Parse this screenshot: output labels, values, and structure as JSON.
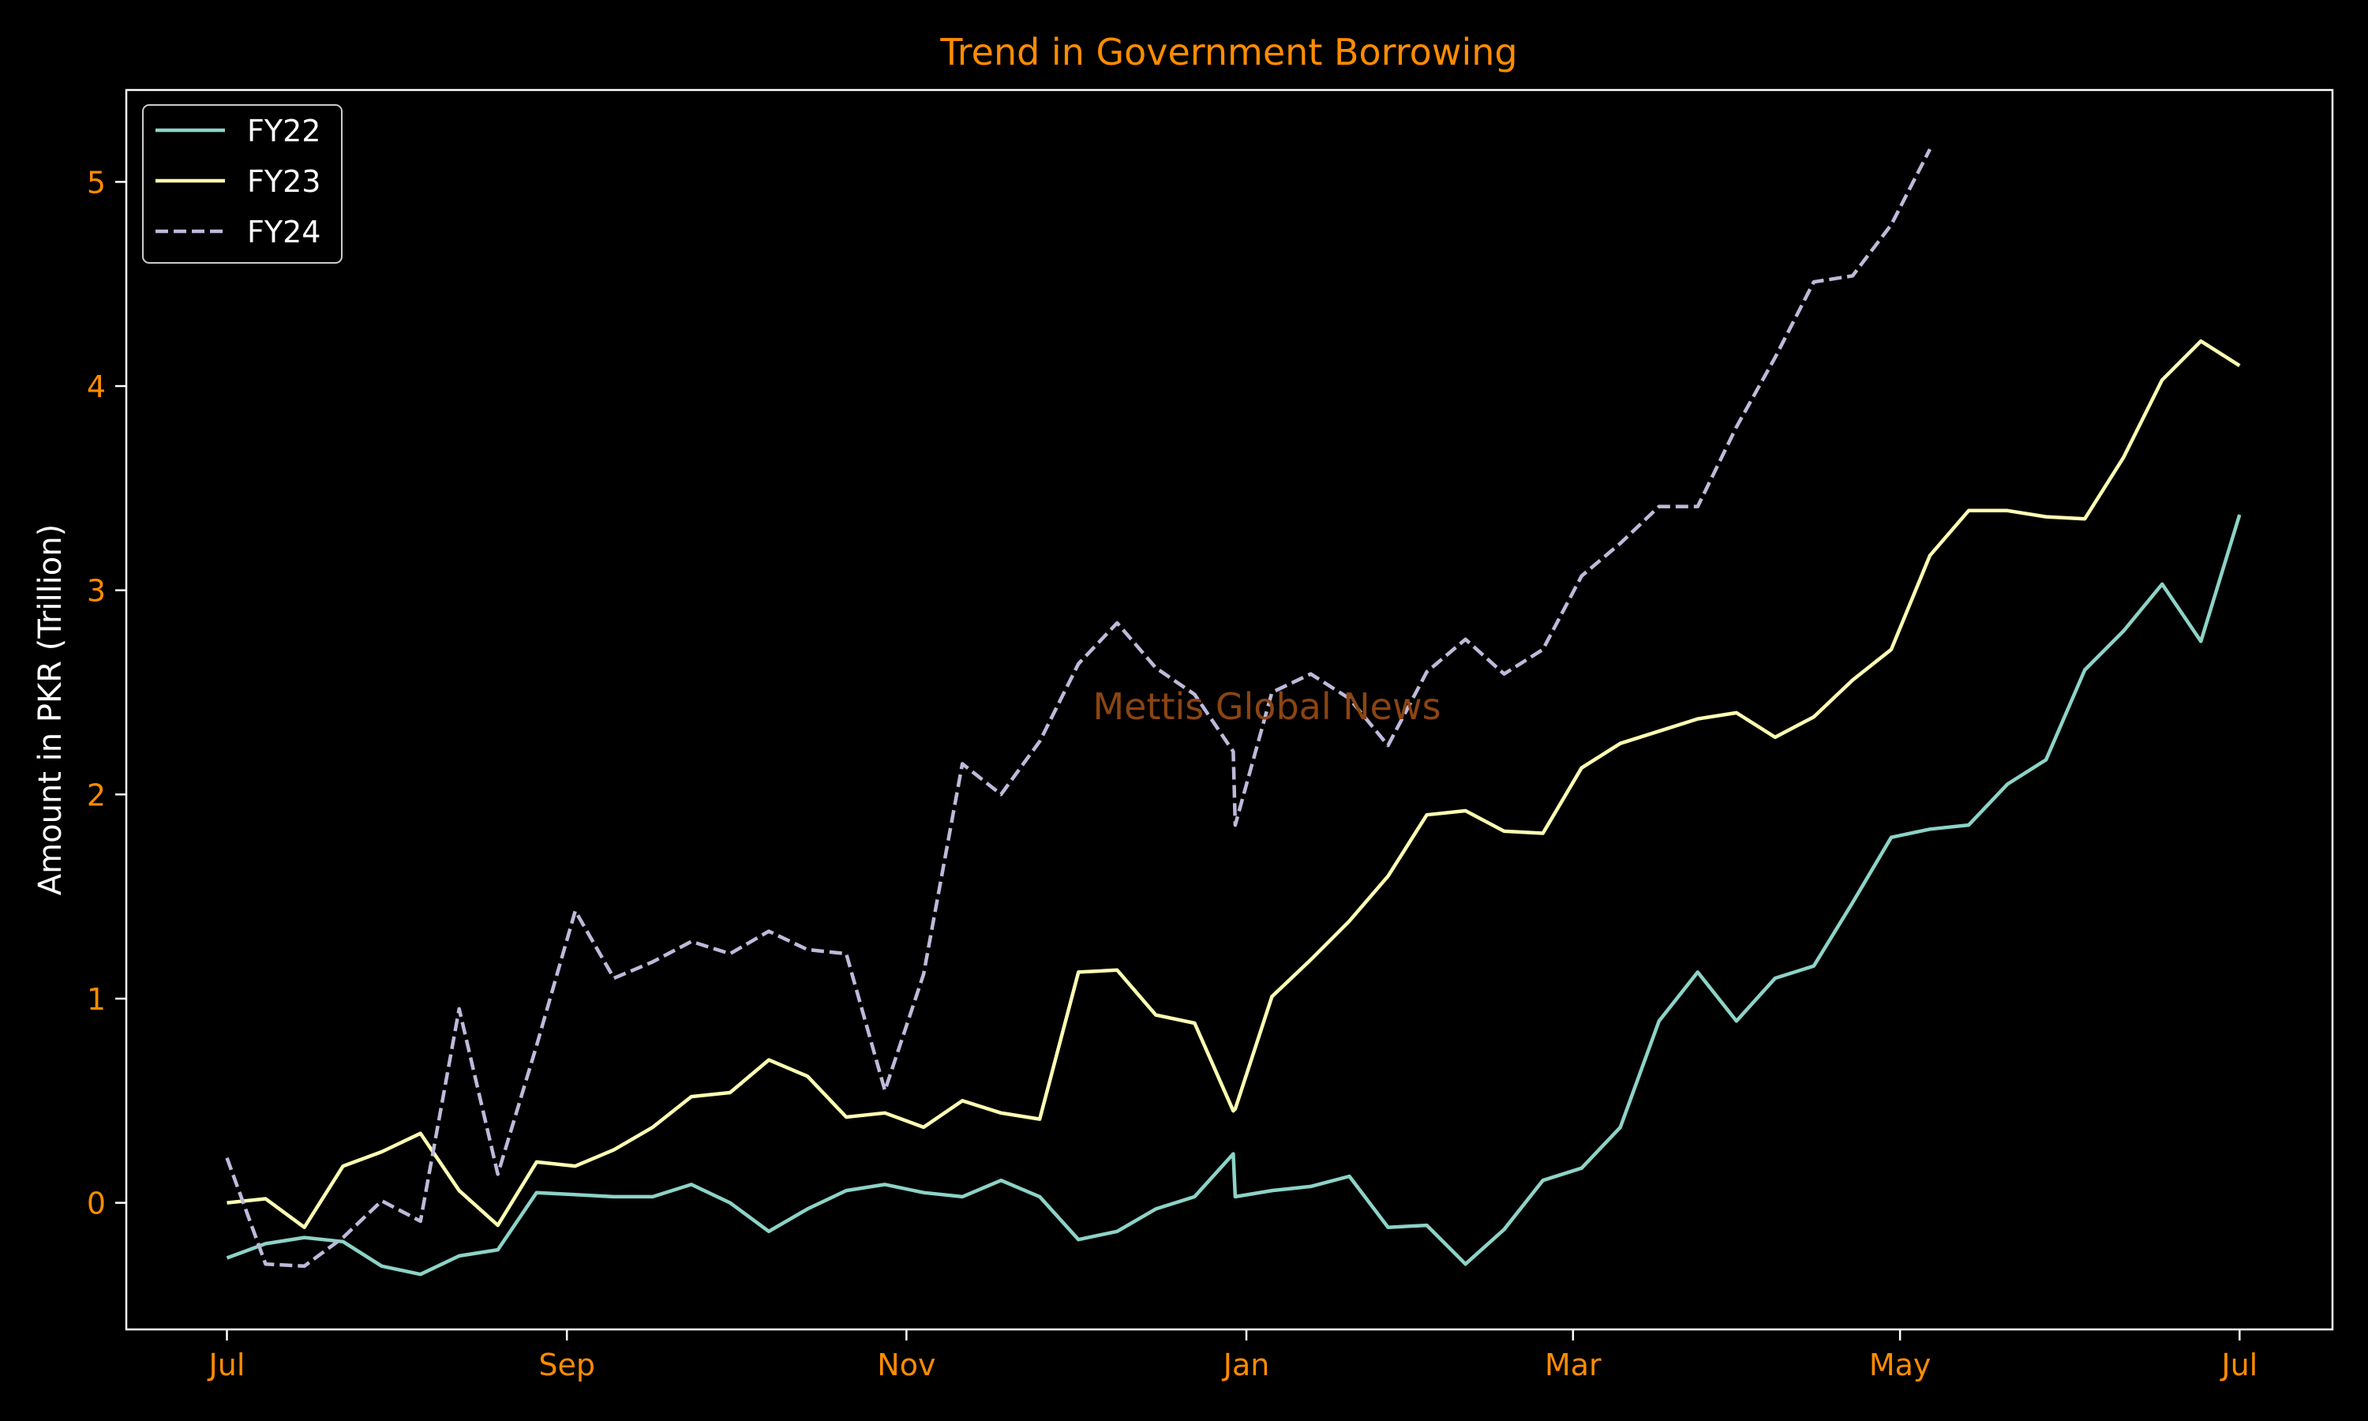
{
  "colors": {
    "background": "#000000",
    "axes": "#ffffff",
    "title": "#ff8c00",
    "tick_labels": "#ff8c00",
    "axis_label": "#ffffff",
    "watermark": "#8b4513"
  },
  "watermark": "Mettis Global News",
  "chart_data": {
    "type": "line",
    "title": "Trend in Government Borrowing",
    "xlabel": "",
    "ylabel": "Amount in PKR (Trillion)",
    "x_tick_labels": [
      "Jul",
      "Sep",
      "Nov",
      "Jan",
      "Mar",
      "May",
      "Jul"
    ],
    "y_ticks": [
      0,
      1,
      2,
      3,
      4,
      5
    ],
    "ylim": [
      -0.62,
      5.45
    ],
    "grid": false,
    "legend": "top-left",
    "series": [
      {
        "name": "FY22",
        "color": "#8dd3c7",
        "style": "solid",
        "points": [
          [
            0,
            -0.27
          ],
          [
            1,
            -0.2
          ],
          [
            2,
            -0.17
          ],
          [
            3,
            -0.19
          ],
          [
            4,
            -0.31
          ],
          [
            5,
            -0.35
          ],
          [
            6,
            -0.26
          ],
          [
            7,
            -0.23
          ],
          [
            8,
            0.05
          ],
          [
            9,
            0.04
          ],
          [
            10,
            0.03
          ],
          [
            11,
            0.03
          ],
          [
            12,
            0.09
          ],
          [
            13,
            0.0
          ],
          [
            14,
            -0.14
          ],
          [
            15,
            -0.03
          ],
          [
            16,
            0.06
          ],
          [
            17,
            0.09
          ],
          [
            18,
            0.05
          ],
          [
            19,
            0.03
          ],
          [
            20,
            0.11
          ],
          [
            21,
            0.03
          ],
          [
            22,
            -0.18
          ],
          [
            23,
            -0.14
          ],
          [
            24,
            -0.03
          ],
          [
            25,
            0.03
          ],
          [
            26,
            0.24
          ],
          [
            26.05,
            0.03
          ],
          [
            27,
            0.06
          ],
          [
            28,
            0.08
          ],
          [
            29,
            0.13
          ],
          [
            30,
            -0.12
          ],
          [
            31,
            -0.11
          ],
          [
            32,
            -0.3
          ],
          [
            33,
            -0.13
          ],
          [
            34,
            0.11
          ],
          [
            35,
            0.17
          ],
          [
            36,
            0.37
          ],
          [
            37,
            0.89
          ],
          [
            38,
            1.13
          ],
          [
            39,
            0.89
          ],
          [
            40,
            1.1
          ],
          [
            41,
            1.16
          ],
          [
            42,
            1.47
          ],
          [
            43,
            1.79
          ],
          [
            44,
            1.83
          ],
          [
            45,
            1.85
          ],
          [
            46,
            2.05
          ],
          [
            47,
            2.17
          ],
          [
            48,
            2.61
          ],
          [
            49,
            2.8
          ],
          [
            50,
            3.03
          ],
          [
            51,
            2.75
          ],
          [
            52,
            3.37
          ]
        ]
      },
      {
        "name": "FY23",
        "color": "#ffffb3",
        "style": "solid",
        "points": [
          [
            0,
            0.0
          ],
          [
            1,
            0.02
          ],
          [
            2,
            -0.12
          ],
          [
            3,
            0.18
          ],
          [
            4,
            0.25
          ],
          [
            5,
            0.34
          ],
          [
            6,
            0.06
          ],
          [
            7,
            -0.11
          ],
          [
            8,
            0.2
          ],
          [
            9,
            0.18
          ],
          [
            10,
            0.26
          ],
          [
            11,
            0.37
          ],
          [
            12,
            0.52
          ],
          [
            13,
            0.54
          ],
          [
            14,
            0.7
          ],
          [
            15,
            0.62
          ],
          [
            16,
            0.42
          ],
          [
            17,
            0.44
          ],
          [
            18,
            0.37
          ],
          [
            19,
            0.5
          ],
          [
            20,
            0.44
          ],
          [
            21,
            0.41
          ],
          [
            22,
            1.13
          ],
          [
            23,
            1.14
          ],
          [
            24,
            0.92
          ],
          [
            25,
            0.88
          ],
          [
            26,
            0.45
          ],
          [
            26.05,
            0.46
          ],
          [
            27,
            1.01
          ],
          [
            28,
            1.19
          ],
          [
            29,
            1.38
          ],
          [
            30,
            1.6
          ],
          [
            31,
            1.9
          ],
          [
            32,
            1.92
          ],
          [
            33,
            1.82
          ],
          [
            34,
            1.81
          ],
          [
            35,
            2.13
          ],
          [
            36,
            2.25
          ],
          [
            37,
            2.31
          ],
          [
            38,
            2.37
          ],
          [
            39,
            2.4
          ],
          [
            40,
            2.28
          ],
          [
            41,
            2.38
          ],
          [
            42,
            2.56
          ],
          [
            43,
            2.71
          ],
          [
            44,
            3.17
          ],
          [
            45,
            3.39
          ],
          [
            46,
            3.39
          ],
          [
            47,
            3.36
          ],
          [
            48,
            3.35
          ],
          [
            49,
            3.65
          ],
          [
            50,
            4.03
          ],
          [
            51,
            4.22
          ],
          [
            52,
            4.1
          ]
        ]
      },
      {
        "name": "FY24",
        "color": "#bebada",
        "style": "dashed",
        "points": [
          [
            0,
            0.22
          ],
          [
            1,
            -0.3
          ],
          [
            2,
            -0.31
          ],
          [
            3,
            -0.17
          ],
          [
            4,
            0.01
          ],
          [
            5,
            -0.09
          ],
          [
            6,
            0.95
          ],
          [
            7,
            0.14
          ],
          [
            8,
            0.77
          ],
          [
            9,
            1.43
          ],
          [
            10,
            1.1
          ],
          [
            11,
            1.18
          ],
          [
            12,
            1.28
          ],
          [
            13,
            1.22
          ],
          [
            14,
            1.33
          ],
          [
            15,
            1.24
          ],
          [
            16,
            1.22
          ],
          [
            17,
            0.55
          ],
          [
            18,
            1.12
          ],
          [
            19,
            2.15
          ],
          [
            20,
            2.0
          ],
          [
            21,
            2.26
          ],
          [
            22,
            2.64
          ],
          [
            23,
            2.84
          ],
          [
            24,
            2.62
          ],
          [
            25,
            2.49
          ],
          [
            26,
            2.21
          ],
          [
            26.05,
            1.85
          ],
          [
            27,
            2.5
          ],
          [
            28,
            2.59
          ],
          [
            29,
            2.47
          ],
          [
            30,
            2.24
          ],
          [
            31,
            2.6
          ],
          [
            32,
            2.76
          ],
          [
            33,
            2.59
          ],
          [
            34,
            2.71
          ],
          [
            35,
            3.07
          ],
          [
            36,
            3.23
          ],
          [
            37,
            3.41
          ],
          [
            38,
            3.41
          ],
          [
            39,
            3.8
          ],
          [
            40,
            4.14
          ],
          [
            41,
            4.51
          ],
          [
            42,
            4.54
          ],
          [
            43,
            4.79
          ],
          [
            44,
            5.16
          ]
        ]
      }
    ]
  }
}
